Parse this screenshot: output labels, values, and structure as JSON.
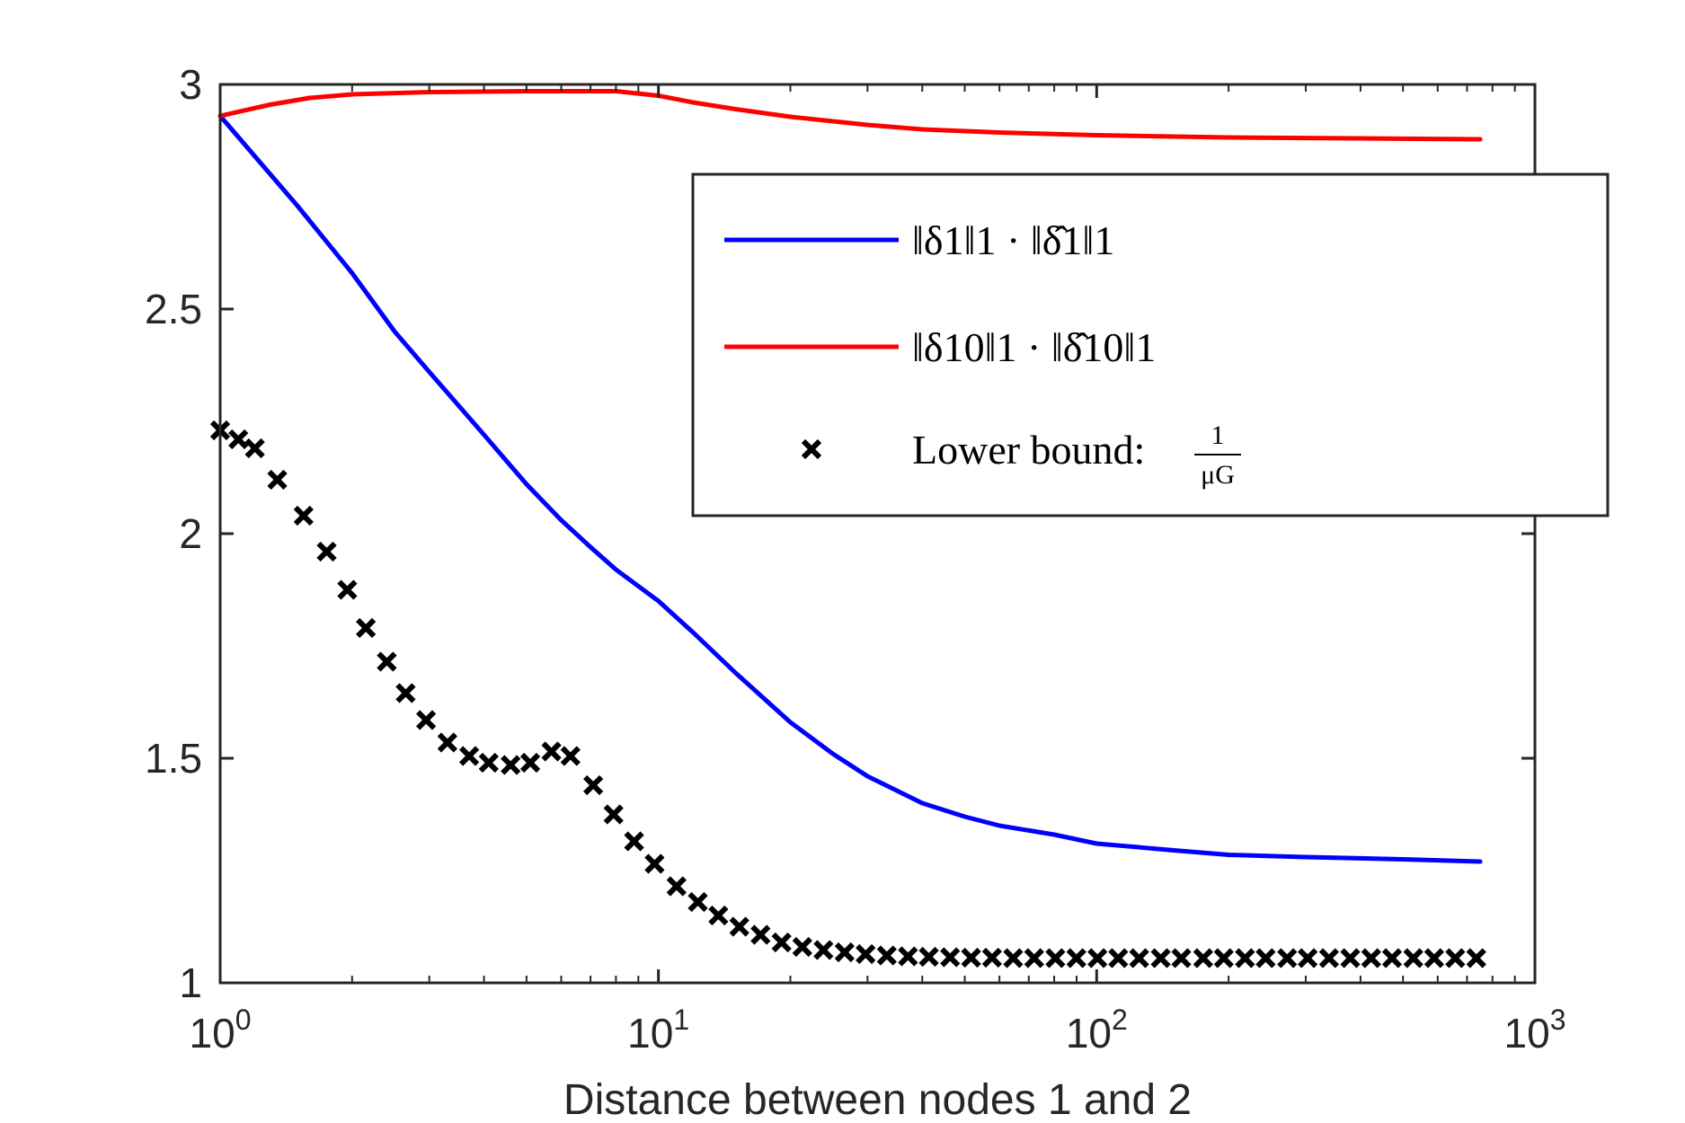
{
  "chart_data": {
    "type": "line",
    "xlabel": "Distance between nodes 1 and 2",
    "ylabel": "",
    "xscale": "log",
    "xlim": [
      1,
      1000
    ],
    "ylim": [
      1,
      3
    ],
    "x_ticks": [
      {
        "base": "10",
        "exp": "0"
      },
      {
        "base": "10",
        "exp": "1"
      },
      {
        "base": "10",
        "exp": "2"
      },
      {
        "base": "10",
        "exp": "3"
      }
    ],
    "y_ticks": [
      "1",
      "1.5",
      "2",
      "2.5",
      "3"
    ],
    "grid": false,
    "legend_position": "top-right",
    "series": [
      {
        "name": "‖δ1‖1 · ‖δ̂1‖1",
        "kind": "line",
        "color": "#0000ff",
        "points": [
          [
            1,
            2.93
          ],
          [
            1.2,
            2.84
          ],
          [
            1.5,
            2.73
          ],
          [
            2,
            2.58
          ],
          [
            2.5,
            2.45
          ],
          [
            3,
            2.36
          ],
          [
            4,
            2.22
          ],
          [
            5,
            2.11
          ],
          [
            6,
            2.03
          ],
          [
            7,
            1.97
          ],
          [
            8,
            1.92
          ],
          [
            10,
            1.85
          ],
          [
            12,
            1.78
          ],
          [
            15,
            1.69
          ],
          [
            20,
            1.58
          ],
          [
            25,
            1.51
          ],
          [
            30,
            1.46
          ],
          [
            40,
            1.4
          ],
          [
            50,
            1.37
          ],
          [
            60,
            1.35
          ],
          [
            80,
            1.33
          ],
          [
            100,
            1.31
          ],
          [
            150,
            1.295
          ],
          [
            200,
            1.285
          ],
          [
            300,
            1.28
          ],
          [
            500,
            1.275
          ],
          [
            750,
            1.27
          ]
        ]
      },
      {
        "name": "‖δ10‖1 · ‖δ̂10‖1",
        "kind": "line",
        "color": "#ff0000",
        "points": [
          [
            1,
            2.93
          ],
          [
            1.3,
            2.955
          ],
          [
            1.6,
            2.97
          ],
          [
            2,
            2.978
          ],
          [
            3,
            2.983
          ],
          [
            5,
            2.985
          ],
          [
            8,
            2.985
          ],
          [
            10,
            2.975
          ],
          [
            12,
            2.96
          ],
          [
            15,
            2.945
          ],
          [
            20,
            2.928
          ],
          [
            30,
            2.91
          ],
          [
            40,
            2.9
          ],
          [
            60,
            2.893
          ],
          [
            100,
            2.887
          ],
          [
            200,
            2.882
          ],
          [
            400,
            2.88
          ],
          [
            750,
            2.878
          ]
        ]
      },
      {
        "name": "Lower bound:",
        "name_fraction": {
          "numerator": "1",
          "denominator": "μG"
        },
        "kind": "markers",
        "marker": "x",
        "color": "#000000",
        "points": [
          [
            1,
            2.23
          ],
          [
            1.1,
            2.21
          ],
          [
            1.2,
            2.19
          ],
          [
            1.35,
            2.12
          ],
          [
            1.55,
            2.04
          ],
          [
            1.75,
            1.96
          ],
          [
            1.95,
            1.875
          ],
          [
            2.15,
            1.79
          ],
          [
            2.4,
            1.715
          ],
          [
            2.65,
            1.645
          ],
          [
            2.95,
            1.585
          ],
          [
            3.3,
            1.535
          ],
          [
            3.7,
            1.505
          ],
          [
            4.1,
            1.49
          ],
          [
            4.6,
            1.485
          ],
          [
            5.1,
            1.49
          ],
          [
            5.7,
            1.515
          ],
          [
            6.3,
            1.505
          ],
          [
            7.1,
            1.44
          ],
          [
            7.9,
            1.375
          ],
          [
            8.8,
            1.315
          ],
          [
            9.8,
            1.265
          ],
          [
            11,
            1.215
          ],
          [
            12.3,
            1.18
          ],
          [
            13.7,
            1.15
          ],
          [
            15.3,
            1.125
          ],
          [
            17.1,
            1.107
          ],
          [
            19.1,
            1.09
          ],
          [
            21.3,
            1.08
          ],
          [
            23.8,
            1.073
          ],
          [
            26.6,
            1.068
          ],
          [
            29.7,
            1.064
          ],
          [
            33.2,
            1.061
          ],
          [
            37.1,
            1.059
          ],
          [
            41.4,
            1.058
          ],
          [
            46.3,
            1.057
          ],
          [
            51.7,
            1.056
          ],
          [
            57.7,
            1.056
          ],
          [
            64.5,
            1.055
          ],
          [
            72,
            1.055
          ],
          [
            80.5,
            1.055
          ],
          [
            89.9,
            1.055
          ],
          [
            100.4,
            1.055
          ],
          [
            112,
            1.055
          ],
          [
            125,
            1.055
          ],
          [
            140,
            1.055
          ],
          [
            156,
            1.055
          ],
          [
            175,
            1.055
          ],
          [
            195,
            1.055
          ],
          [
            218,
            1.055
          ],
          [
            243,
            1.055
          ],
          [
            272,
            1.055
          ],
          [
            303,
            1.055
          ],
          [
            339,
            1.055
          ],
          [
            379,
            1.055
          ],
          [
            423,
            1.055
          ],
          [
            472,
            1.055
          ],
          [
            528,
            1.055
          ],
          [
            589,
            1.055
          ],
          [
            658,
            1.055
          ],
          [
            735,
            1.055
          ]
        ]
      }
    ]
  }
}
